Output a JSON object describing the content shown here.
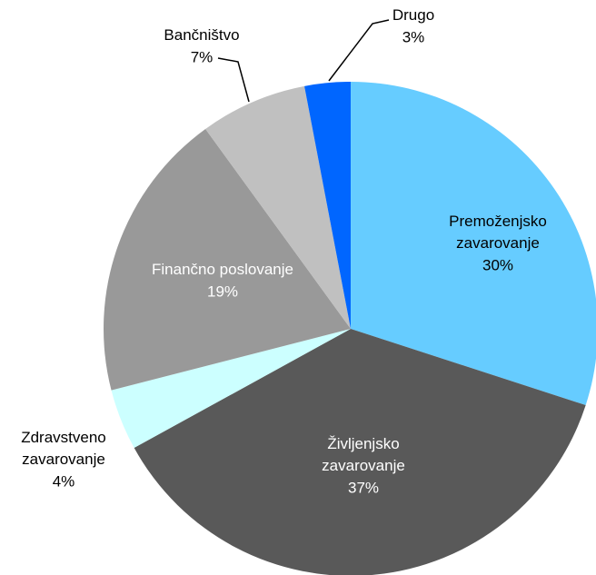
{
  "chart_data": {
    "type": "pie",
    "categories": [
      "Premoženjsko zavarovanje",
      "Življenjsko zavarovanje",
      "Zdravstveno zavarovanje",
      "Finančno poslovanje",
      "Bančništvo",
      "Drugo"
    ],
    "values": [
      30,
      37,
      4,
      19,
      7,
      3
    ],
    "value_labels": [
      "30%",
      "37%",
      "4%",
      "19%",
      "7%",
      "3%"
    ],
    "colors": [
      "#66ccff",
      "#595959",
      "#ccffff",
      "#999999",
      "#c0c0c0",
      "#0066ff"
    ]
  }
}
